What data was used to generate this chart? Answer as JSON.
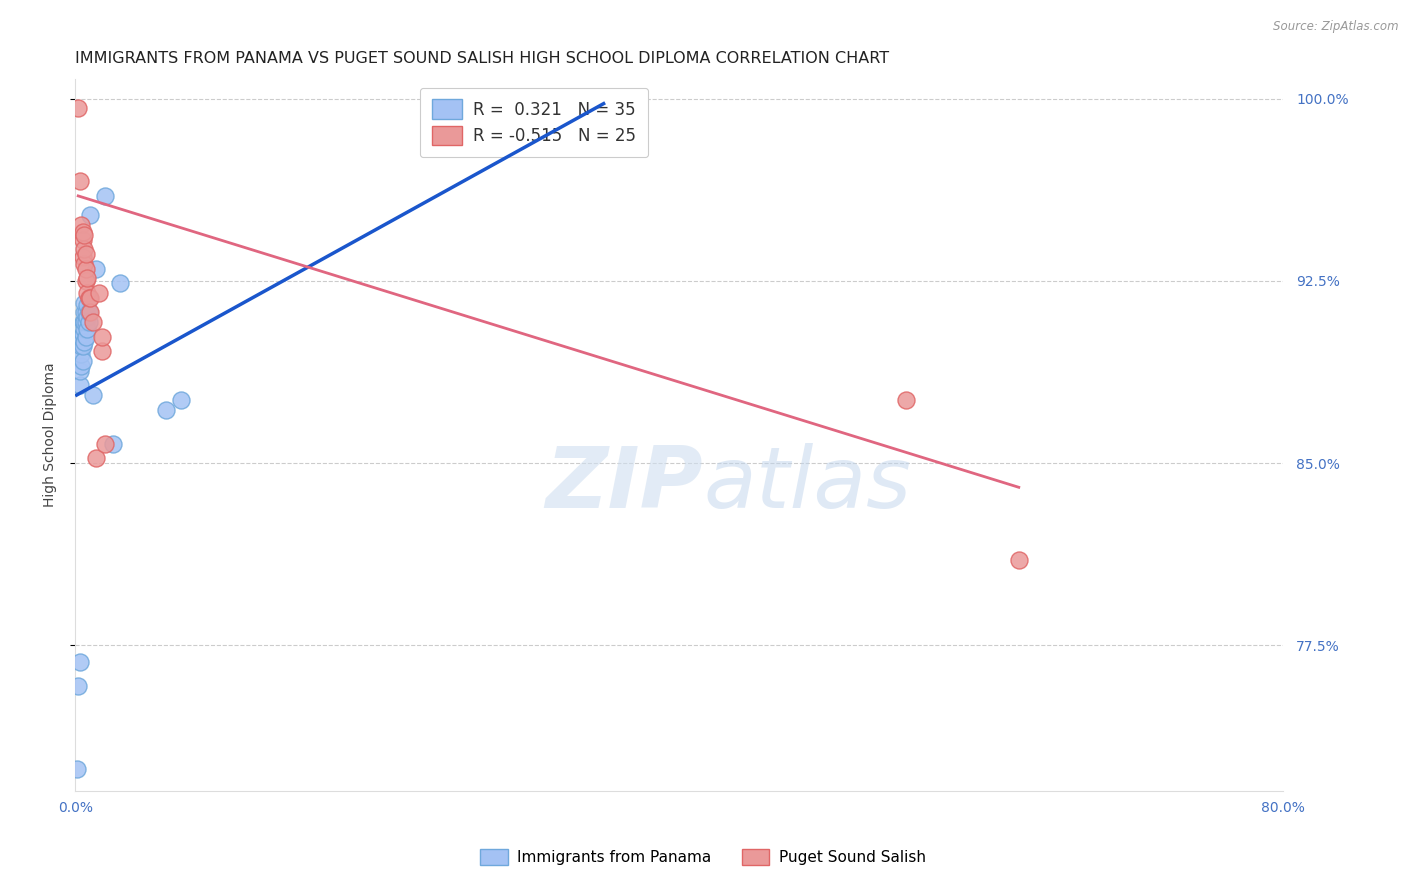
{
  "title": "IMMIGRANTS FROM PANAMA VS PUGET SOUND SALISH HIGH SCHOOL DIPLOMA CORRELATION CHART",
  "source": "Source: ZipAtlas.com",
  "ylabel": "High School Diploma",
  "watermark_zip": "ZIP",
  "watermark_atlas": "atlas",
  "xlim": [
    0.0,
    0.8
  ],
  "ylim": [
    0.715,
    1.008
  ],
  "xticks": [
    0.0,
    0.1,
    0.2,
    0.3,
    0.4,
    0.5,
    0.6,
    0.7,
    0.8
  ],
  "ytick_labels": [
    "77.5%",
    "85.0%",
    "92.5%",
    "100.0%"
  ],
  "yticks": [
    0.775,
    0.85,
    0.925,
    1.0
  ],
  "blue_R": 0.321,
  "blue_N": 35,
  "pink_R": -0.515,
  "pink_N": 25,
  "blue_color": "#a4c2f4",
  "pink_color": "#ea9999",
  "blue_edge_color": "#6fa8dc",
  "pink_edge_color": "#e06666",
  "blue_line_color": "#1a56cc",
  "pink_line_color": "#e06680",
  "legend_label_blue": "Immigrants from Panama",
  "legend_label_pink": "Puget Sound Salish",
  "blue_x": [
    0.001,
    0.002,
    0.003,
    0.003,
    0.003,
    0.004,
    0.004,
    0.004,
    0.004,
    0.005,
    0.005,
    0.005,
    0.005,
    0.006,
    0.006,
    0.006,
    0.006,
    0.006,
    0.007,
    0.007,
    0.007,
    0.008,
    0.008,
    0.008,
    0.009,
    0.009,
    0.01,
    0.012,
    0.014,
    0.02,
    0.025,
    0.03,
    0.06,
    0.07,
    0.35
  ],
  "blue_y": [
    0.724,
    0.758,
    0.768,
    0.882,
    0.888,
    0.89,
    0.895,
    0.898,
    0.902,
    0.892,
    0.898,
    0.903,
    0.908,
    0.9,
    0.905,
    0.908,
    0.912,
    0.916,
    0.902,
    0.908,
    0.912,
    0.905,
    0.91,
    0.915,
    0.908,
    0.912,
    0.952,
    0.878,
    0.93,
    0.96,
    0.858,
    0.924,
    0.872,
    0.876,
    0.992
  ],
  "pink_x": [
    0.002,
    0.003,
    0.004,
    0.005,
    0.005,
    0.005,
    0.006,
    0.006,
    0.006,
    0.007,
    0.007,
    0.007,
    0.008,
    0.008,
    0.009,
    0.01,
    0.01,
    0.012,
    0.014,
    0.016,
    0.018,
    0.018,
    0.02,
    0.55,
    0.625
  ],
  "pink_y": [
    0.996,
    0.966,
    0.948,
    0.935,
    0.942,
    0.945,
    0.932,
    0.938,
    0.944,
    0.925,
    0.93,
    0.936,
    0.92,
    0.926,
    0.918,
    0.912,
    0.918,
    0.908,
    0.852,
    0.92,
    0.896,
    0.902,
    0.858,
    0.876,
    0.81
  ],
  "blue_line_x": [
    0.001,
    0.35
  ],
  "blue_line_y": [
    0.878,
    0.998
  ],
  "pink_line_x": [
    0.002,
    0.625
  ],
  "pink_line_y": [
    0.96,
    0.84
  ],
  "grid_color": "#cccccc",
  "background_color": "#ffffff",
  "title_fontsize": 11.5,
  "axis_label_fontsize": 10,
  "tick_label_fontsize": 10,
  "right_tick_color": "#4472c4",
  "bottom_tick_label_color": "#4472c4"
}
